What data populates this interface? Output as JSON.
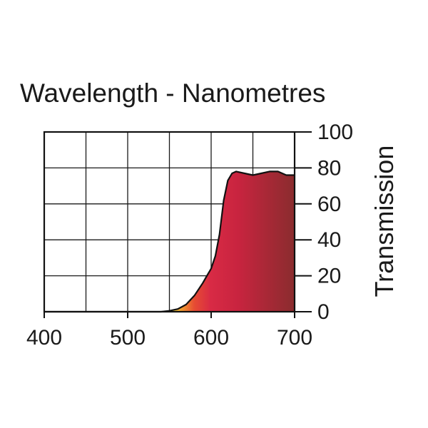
{
  "chart_data": {
    "type": "area",
    "title": "Wavelength - Nanometres",
    "xlabel": "",
    "ylabel": "Transmission",
    "xlim": [
      400,
      700
    ],
    "ylim": [
      0,
      100
    ],
    "x_ticks": [
      "400",
      "500",
      "600",
      "700"
    ],
    "y_ticks": [
      "0",
      "20",
      "40",
      "60",
      "80",
      "100"
    ],
    "grid": true,
    "y_axis_side": "right",
    "series": [
      {
        "x": [
          400,
          450,
          500,
          540,
          550,
          560,
          570,
          580,
          590,
          595,
          600,
          605,
          610,
          615,
          620,
          625,
          630,
          640,
          650,
          660,
          670,
          680,
          690,
          700
        ],
        "y": [
          0,
          0,
          0,
          0,
          0.5,
          1.5,
          4,
          9,
          16,
          20,
          24,
          31,
          43,
          62,
          73,
          77,
          78,
          77,
          76,
          77,
          78,
          78,
          76,
          76
        ]
      }
    ],
    "fill_gradient": [
      "#f5f042",
      "#f0a030",
      "#e64b33",
      "#d82a45",
      "#c8243f",
      "#8a2c2e"
    ]
  }
}
